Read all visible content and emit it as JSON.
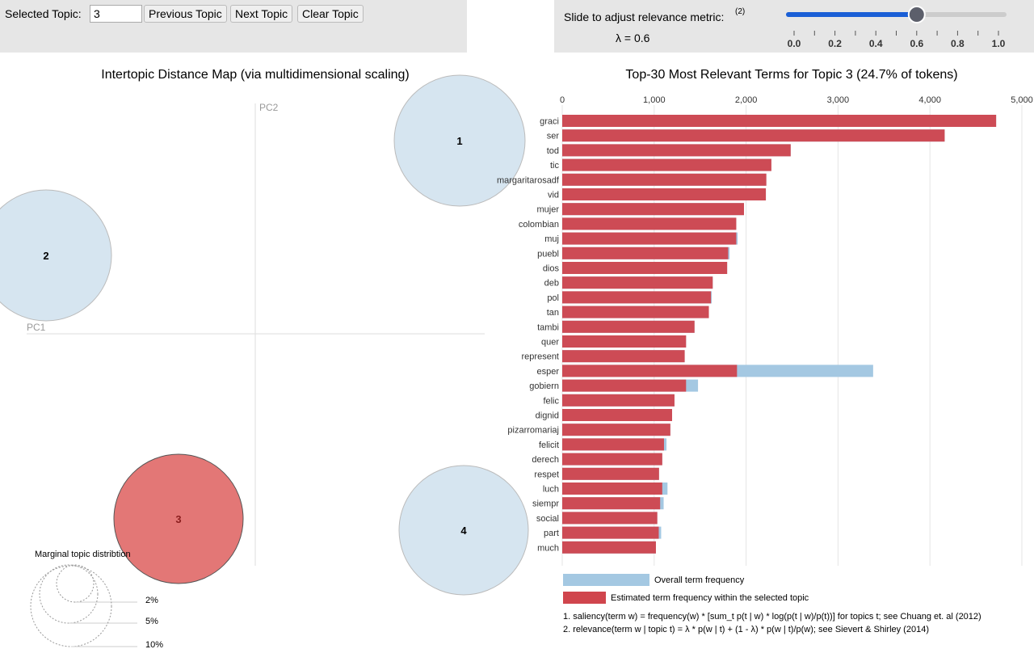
{
  "controls": {
    "selected_topic_label": "Selected Topic:",
    "selected_topic_value": "3",
    "previous_label": "Previous Topic",
    "next_label": "Next Topic",
    "clear_label": "Clear Topic",
    "slider_label": "Slide to adjust relevance metric:",
    "slider_sup": "(2)",
    "lambda_text": "λ = 0.6",
    "lambda_value": 0.6,
    "slider_ticks": [
      "0.0",
      "0.2",
      "0.4",
      "0.6",
      "0.8",
      "1.0"
    ],
    "slider_color": "#1a5fd6"
  },
  "map": {
    "title": "Intertopic Distance Map (via multidimensional scaling)",
    "pc1": "PC1",
    "pc2": "PC2",
    "topics": [
      {
        "label": "1",
        "selected": false
      },
      {
        "label": "2",
        "selected": false
      },
      {
        "label": "3",
        "selected": true
      },
      {
        "label": "4",
        "selected": false
      }
    ],
    "colors": {
      "default": "#d2e2ee",
      "selected": "#e37776"
    },
    "marginal_title": "Marginal topic distribtion",
    "marginal_labels": [
      "2%",
      "5%",
      "10%"
    ]
  },
  "chart_data": {
    "type": "bar",
    "title": "Top-30 Most Relevant Terms for Topic 3 (24.7% of tokens)",
    "xlim": [
      0,
      5000
    ],
    "ticks": [
      "0",
      "1,000",
      "2,000",
      "3,000",
      "4,000",
      "5,000"
    ],
    "grid": true,
    "categories": [
      "graci",
      "ser",
      "tod",
      "tic",
      "margaritarosadf",
      "vid",
      "mujer",
      "colombian",
      "muj",
      "puebl",
      "dios",
      "deb",
      "pol",
      "tan",
      "tambi",
      "quer",
      "represent",
      "esper",
      "gobiern",
      "felic",
      "dignid",
      "pizarromariaj",
      "felicit",
      "derech",
      "respet",
      "luch",
      "siempr",
      "social",
      "part",
      "much"
    ],
    "series": [
      {
        "name": "Overall term frequency",
        "color": "#a4c8e2",
        "values": [
          4720,
          4160,
          2485,
          2275,
          2220,
          2215,
          1977,
          1893,
          1908,
          1820,
          1794,
          1637,
          1626,
          1595,
          1439,
          1347,
          1332,
          3382,
          1477,
          1221,
          1195,
          1176,
          1134,
          1088,
          1053,
          1145,
          1103,
          1034,
          1076,
          1019
        ]
      },
      {
        "name": "Estimated term frequency within the selected topic",
        "color": "#d0454d",
        "values": [
          4720,
          4160,
          2485,
          2275,
          2220,
          2215,
          1977,
          1893,
          1893,
          1805,
          1794,
          1637,
          1618,
          1595,
          1439,
          1347,
          1332,
          1901,
          1347,
          1221,
          1195,
          1176,
          1107,
          1088,
          1053,
          1088,
          1065,
          1034,
          1050,
          1019
        ]
      }
    ],
    "footnotes": [
      "1. saliency(term w) = frequency(w) * [sum_t p(t | w) * log(p(t | w)/p(t))] for topics t; see Chuang et. al (2012)",
      "2. relevance(term w | topic t) = λ * p(w | t) + (1 - λ) * p(w | t)/p(w); see Sievert & Shirley (2014)"
    ]
  }
}
